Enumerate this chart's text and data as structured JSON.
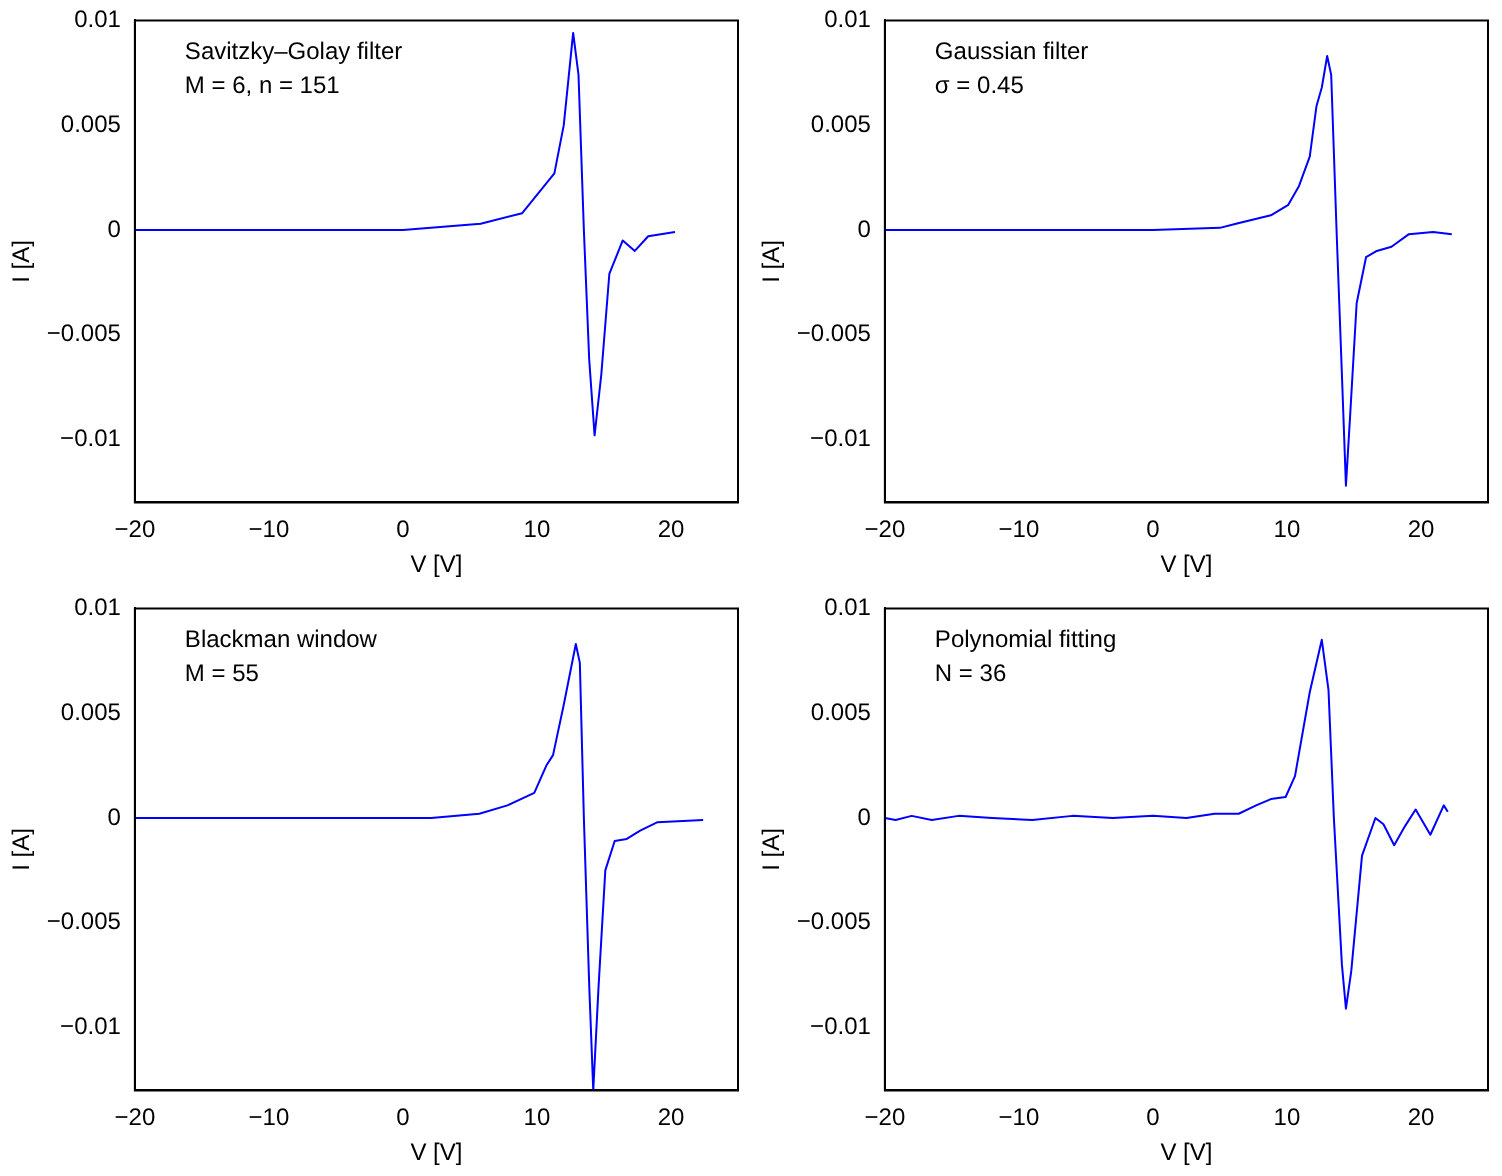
{
  "chart_data": [
    {
      "type": "line",
      "annotations": [
        "Savitzky–Golay filter",
        "M = 6, n = 151"
      ],
      "xlabel": "V [V]",
      "ylabel": "I [A]",
      "xlim": [
        -20,
        25
      ],
      "xticks": [
        -20,
        -10,
        0,
        10,
        20
      ],
      "ylim": [
        -0.013,
        0.01
      ],
      "yticks": [
        -0.01,
        -0.005,
        0,
        0.005,
        0.01
      ],
      "grid": false,
      "legend": false,
      "marker": "none",
      "series": [
        {
          "color": "#0000ff",
          "x": [
            -20,
            -10,
            0,
            5.8,
            8.9,
            11.3,
            12.0,
            12.7,
            13.1,
            13.5,
            13.9,
            14.3,
            14.8,
            15.4,
            16.4,
            17.3,
            18.3,
            20.3
          ],
          "values": [
            0,
            0,
            0,
            0.0003,
            0.0008,
            0.0027,
            0.005,
            0.0094,
            0.0074,
            0,
            -0.0062,
            -0.0098,
            -0.0069,
            -0.0021,
            -0.0005,
            -0.001,
            -0.0003,
            -0.0001
          ]
        }
      ]
    },
    {
      "type": "line",
      "annotations": [
        "Gaussian filter",
        "σ = 0.45"
      ],
      "xlabel": "V [V]",
      "ylabel": "I [A]",
      "xlim": [
        -20,
        25
      ],
      "xticks": [
        -20,
        -10,
        0,
        10,
        20
      ],
      "ylim": [
        -0.013,
        0.01
      ],
      "yticks": [
        -0.01,
        -0.005,
        0,
        0.005,
        0.01
      ],
      "grid": false,
      "legend": false,
      "marker": "none",
      "series": [
        {
          "color": "#0000ff",
          "x": [
            -20,
            -10,
            0,
            5,
            6.2,
            8.8,
            10.1,
            10.9,
            11.7,
            12.2,
            12.6,
            13.0,
            13.3,
            13.7,
            14.1,
            14.4,
            14.7,
            15.2,
            15.9,
            16.7,
            17.8,
            19.1,
            20.9,
            22.3
          ],
          "values": [
            0,
            0,
            0,
            0.0001,
            0.0003,
            0.0007,
            0.0012,
            0.0021,
            0.0035,
            0.0059,
            0.0068,
            0.0083,
            0.0074,
            0,
            -0.0069,
            -0.0122,
            -0.009,
            -0.0035,
            -0.0013,
            -0.001,
            -0.0008,
            -0.0002,
            -0.0001,
            -0.0002
          ]
        }
      ]
    },
    {
      "type": "line",
      "annotations": [
        "Blackman window",
        "M = 55"
      ],
      "xlabel": "V [V]",
      "ylabel": "I [A]",
      "xlim": [
        -20,
        25
      ],
      "xticks": [
        -20,
        -10,
        0,
        10,
        20
      ],
      "ylim": [
        -0.013,
        0.01
      ],
      "yticks": [
        -0.01,
        -0.005,
        0,
        0.005,
        0.01
      ],
      "grid": false,
      "legend": false,
      "marker": "none",
      "series": [
        {
          "color": "#0000ff",
          "x": [
            -20,
            -10,
            0,
            2.1,
            5.7,
            7.8,
            9.8,
            10.7,
            11.2,
            12.0,
            12.9,
            13.2,
            13.5,
            13.9,
            14.2,
            14.6,
            15.1,
            15.8,
            16.7,
            17.7,
            19.0,
            22.4
          ],
          "values": [
            0,
            0,
            0,
            0,
            0.0002,
            0.0006,
            0.0012,
            0.0025,
            0.003,
            0.0054,
            0.0083,
            0.0074,
            0,
            -0.008,
            -0.013,
            -0.008,
            -0.0025,
            -0.0011,
            -0.001,
            -0.0006,
            -0.0002,
            -0.0001
          ]
        }
      ]
    },
    {
      "type": "line",
      "annotations": [
        "Polynomial fitting",
        "N = 36"
      ],
      "xlabel": "V [V]",
      "ylabel": "I [A]",
      "xlim": [
        -20,
        25
      ],
      "xticks": [
        -20,
        -10,
        0,
        10,
        20
      ],
      "ylim": [
        -0.013,
        0.01
      ],
      "yticks": [
        -0.01,
        -0.005,
        0,
        0.005,
        0.01
      ],
      "grid": false,
      "legend": false,
      "marker": "none",
      "series": [
        {
          "color": "#0000ff",
          "x": [
            -20,
            -19.2,
            -18,
            -16.5,
            -14.5,
            -12,
            -9,
            -6,
            -3,
            0,
            2.5,
            4.6,
            6.4,
            7.7,
            8.8,
            9.9,
            10.6,
            11.7,
            12.6,
            13.1,
            13.5,
            14.1,
            14.4,
            14.8,
            15.6,
            16.6,
            17.2,
            18.0,
            18.8,
            19.6,
            20.7,
            21.7,
            22.0
          ],
          "values": [
            0,
            -0.0001,
            0.0001,
            -0.0001,
            0.0001,
            0,
            -0.0001,
            0.0001,
            0,
            0.0001,
            0,
            0.0002,
            0.0002,
            0.0006,
            0.0009,
            0.001,
            0.002,
            0.006,
            0.0085,
            0.0061,
            0,
            -0.007,
            -0.0091,
            -0.0073,
            -0.0018,
            0,
            -0.0003,
            -0.0013,
            -0.0004,
            0.0004,
            -0.0008,
            0.0006,
            0.0003
          ]
        }
      ]
    }
  ]
}
